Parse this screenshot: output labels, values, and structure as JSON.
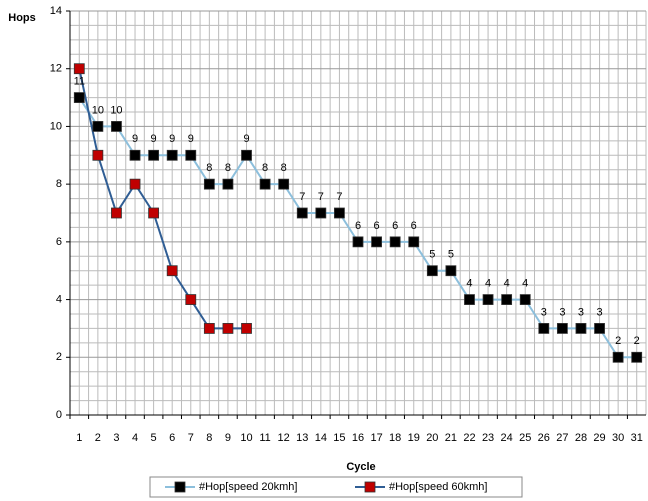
{
  "chart_data": {
    "type": "line",
    "y_label": "Hops",
    "x_label": "Cycle",
    "categories": [
      "1",
      "2",
      "3",
      "4",
      "5",
      "6",
      "7",
      "8",
      "9",
      "10",
      "11",
      "12",
      "13",
      "14",
      "15",
      "16",
      "17",
      "18",
      "19",
      "20",
      "21",
      "22",
      "23",
      "24",
      "25",
      "26",
      "27",
      "28",
      "29",
      "30",
      "31"
    ],
    "series": [
      {
        "name": "#Hop[speed 20kmh]",
        "color": "#8cbfdc",
        "marker_color": "#000000",
        "data_labels": true,
        "values": [
          11,
          10,
          10,
          9,
          9,
          9,
          9,
          8,
          8,
          9,
          8,
          8,
          7,
          7,
          7,
          6,
          6,
          6,
          6,
          5,
          5,
          4,
          4,
          4,
          4,
          3,
          3,
          3,
          3,
          2,
          2
        ]
      },
      {
        "name": "#Hop[speed 60kmh]",
        "color": "#2f5d94",
        "marker_color": "#c00000",
        "data_labels": false,
        "values": [
          12,
          9,
          7,
          8,
          7,
          5,
          4,
          3,
          3,
          3,
          null,
          null,
          null,
          null,
          null,
          null,
          null,
          null,
          null,
          null,
          null,
          null,
          null,
          null,
          null,
          null,
          null,
          null,
          null,
          null,
          null
        ]
      }
    ],
    "ylim": [
      0,
      14
    ],
    "yticks": [
      0,
      2,
      4,
      6,
      8,
      10,
      12,
      14
    ],
    "grid": true
  }
}
